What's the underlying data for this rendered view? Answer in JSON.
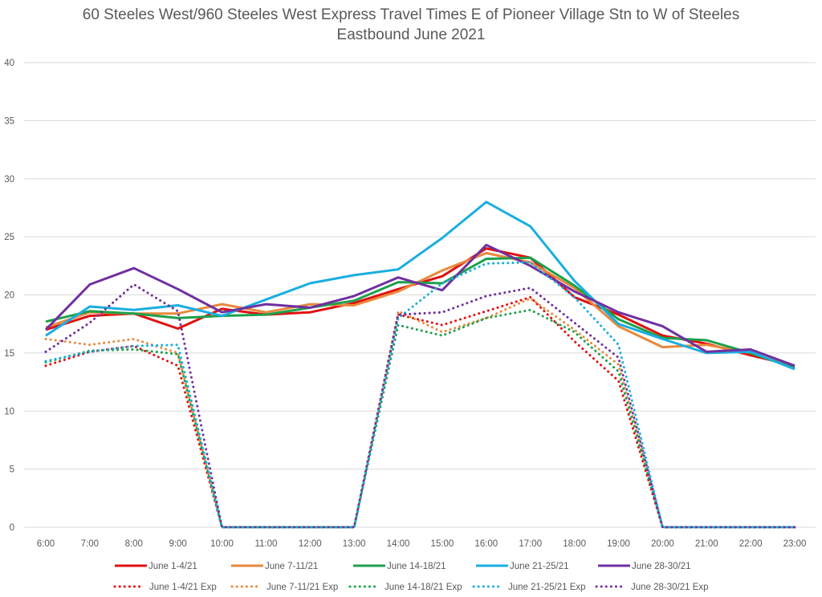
{
  "chart_data": {
    "type": "line",
    "title": "60 Steeles West/960 Steeles West Express Travel Times E of Pioneer Village Stn to W of Steeles",
    "subtitle": "Eastbound  June 2021",
    "xlabel": "",
    "ylabel": "",
    "ylim": [
      0,
      40
    ],
    "yticks": [
      0,
      5,
      10,
      15,
      20,
      25,
      30,
      35,
      40
    ],
    "grid": true,
    "legend_position": "bottom",
    "categories": [
      "6:00",
      "7:00",
      "8:00",
      "9:00",
      "10:00",
      "11:00",
      "12:00",
      "13:00",
      "14:00",
      "15:00",
      "16:00",
      "17:00",
      "18:00",
      "19:00",
      "20:00",
      "21:00",
      "22:00",
      "23:00"
    ],
    "series": [
      {
        "name": "June 1-4/21",
        "color": "#E01010",
        "style": "solid",
        "values": [
          17.0,
          18.2,
          18.4,
          17.1,
          18.8,
          18.3,
          18.5,
          19.3,
          20.5,
          21.6,
          24.0,
          23.2,
          19.8,
          18.3,
          16.5,
          15.8,
          14.8,
          13.9
        ]
      },
      {
        "name": "June 7-11/21",
        "color": "#E8893C",
        "style": "solid",
        "values": [
          17.2,
          18.5,
          18.4,
          18.4,
          19.2,
          18.5,
          19.2,
          19.1,
          20.3,
          22.1,
          23.6,
          22.8,
          20.6,
          17.3,
          15.5,
          15.7,
          15.0,
          13.8
        ]
      },
      {
        "name": "June 14-18/21",
        "color": "#1EA04C",
        "style": "solid",
        "values": [
          17.7,
          18.6,
          18.4,
          18.0,
          18.2,
          18.3,
          18.9,
          19.5,
          21.1,
          21.0,
          23.1,
          23.2,
          20.8,
          17.9,
          16.3,
          16.1,
          15.0,
          13.7
        ]
      },
      {
        "name": "June 21-25/21",
        "color": "#1AAEE0",
        "style": "solid",
        "values": [
          16.5,
          19.0,
          18.7,
          19.1,
          18.2,
          19.6,
          21.0,
          21.7,
          22.2,
          24.9,
          28.0,
          25.9,
          21.2,
          17.5,
          16.2,
          15.0,
          15.1,
          13.6
        ]
      },
      {
        "name": "June 28-30/21",
        "color": "#7030A0",
        "style": "solid",
        "values": [
          17.0,
          20.9,
          22.3,
          20.5,
          18.5,
          19.2,
          18.9,
          19.9,
          21.5,
          20.4,
          24.3,
          22.5,
          20.3,
          18.5,
          17.3,
          15.1,
          15.3,
          13.9
        ]
      },
      {
        "name": "June 1-4/21 Exp",
        "color": "#E01010",
        "style": "dotted",
        "values": [
          13.9,
          15.1,
          15.6,
          13.9,
          0,
          0,
          0,
          0,
          18.3,
          17.4,
          18.6,
          19.8,
          16.0,
          12.6,
          0,
          0,
          0,
          0
        ]
      },
      {
        "name": "June 7-11/21 Exp",
        "color": "#E8893C",
        "style": "dotted",
        "values": [
          16.2,
          15.7,
          16.2,
          15.0,
          0,
          0,
          0,
          0,
          18.6,
          16.8,
          18.0,
          19.7,
          17.0,
          14.0,
          0,
          0,
          0,
          0
        ]
      },
      {
        "name": "June 14-18/21 Exp",
        "color": "#1EA04C",
        "style": "dotted",
        "values": [
          14.2,
          15.2,
          15.3,
          14.9,
          0,
          0,
          0,
          0,
          17.4,
          16.5,
          18.0,
          18.7,
          16.8,
          13.4,
          0,
          0,
          0,
          0
        ]
      },
      {
        "name": "June 21-25/21 Exp",
        "color": "#1AAEE0",
        "style": "dotted",
        "values": [
          14.3,
          15.1,
          15.6,
          15.7,
          0,
          0,
          0,
          0,
          18.0,
          21.0,
          22.7,
          22.8,
          19.8,
          15.7,
          0,
          0,
          0,
          0
        ]
      },
      {
        "name": "June 28-30/21 Exp",
        "color": "#7030A0",
        "style": "dotted",
        "values": [
          15.1,
          17.6,
          20.9,
          18.6,
          0,
          0,
          0,
          0,
          18.3,
          18.5,
          19.9,
          20.6,
          17.6,
          14.6,
          0,
          0,
          0,
          0
        ]
      }
    ]
  }
}
